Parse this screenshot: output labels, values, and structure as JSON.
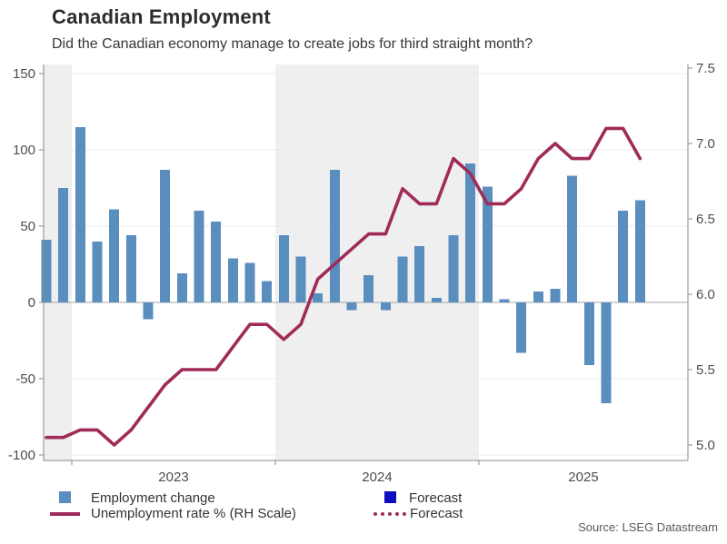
{
  "header": {
    "title": "Canadian Employment",
    "subtitle": "Did the Canadian economy manage to create jobs for third straight month?"
  },
  "source": "Source: LSEG Datastream",
  "colors": {
    "bar": "#5a8ebf",
    "line": "#a02b59",
    "forecast_bar": "#0d0dc4",
    "band": "#efefef",
    "grid": "#ebebeb",
    "zero_line": "#a6a6a6",
    "axis": "#8a8a8a",
    "tick_text": "#4d4d4d"
  },
  "legend": {
    "items": [
      {
        "swatch": "square",
        "color_key": "bar",
        "label": "Employment change"
      },
      {
        "swatch": "square",
        "color_key": "forecast_bar",
        "label": "Forecast"
      },
      {
        "swatch": "line",
        "color_key": "line",
        "label": "Unemployment rate % (RH Scale)"
      },
      {
        "swatch": "dotted-line",
        "color_key": "line",
        "label": "Forecast"
      }
    ]
  },
  "chart_data": {
    "type": "combo",
    "title": "Canadian Employment",
    "months": [
      "Nov 2022",
      "Dec 2022",
      "Jan 2023",
      "Feb 2023",
      "Mar 2023",
      "Apr 2023",
      "May 2023",
      "Jun 2023",
      "Jul 2023",
      "Aug 2023",
      "Sep 2023",
      "Oct 2023",
      "Nov 2023",
      "Dec 2023",
      "Jan 2024",
      "Feb 2024",
      "Mar 2024",
      "Apr 2024",
      "May 2024",
      "Jun 2024",
      "Jul 2024",
      "Aug 2024",
      "Sep 2024",
      "Oct 2024",
      "Nov 2024",
      "Dec 2024",
      "Jan 2025",
      "Feb 2025",
      "Mar 2025",
      "Apr 2025",
      "May 2025",
      "Jun 2025",
      "Jul 2025",
      "Aug 2025",
      "Sep 2025",
      "Oct 2025"
    ],
    "series": [
      {
        "name": "Employment change",
        "type": "bar",
        "axis": "left",
        "values": [
          41,
          75,
          115,
          40,
          61,
          44,
          -11,
          87,
          19,
          60,
          53,
          29,
          26,
          14,
          44,
          30,
          6,
          87,
          -5,
          18,
          -5,
          30,
          37,
          3,
          44,
          91,
          76,
          2,
          -33,
          7,
          9,
          83,
          -41,
          -66,
          60,
          67
        ]
      },
      {
        "name": "Unemployment rate % (RH Scale)",
        "type": "line",
        "axis": "right",
        "values": [
          5.05,
          5.05,
          5.1,
          5.1,
          5.0,
          5.1,
          5.25,
          5.4,
          5.5,
          5.5,
          5.5,
          5.65,
          5.8,
          5.8,
          5.7,
          5.8,
          6.1,
          6.2,
          6.3,
          6.4,
          6.4,
          6.7,
          6.6,
          6.6,
          6.9,
          6.8,
          6.6,
          6.6,
          6.7,
          6.9,
          7.0,
          6.9,
          6.9,
          7.1,
          7.1,
          6.9
        ]
      }
    ],
    "left_axis": {
      "ticks": [
        "150",
        "100",
        "50",
        "0",
        "-50",
        "-100"
      ],
      "range": [
        -100,
        150
      ]
    },
    "right_axis": {
      "ticks": [
        "7.5",
        "7.0",
        "6.5",
        "6.0",
        "5.5",
        "5.0"
      ],
      "range": [
        5.0,
        7.5
      ]
    },
    "x_axis": {
      "year_labels": [
        "2023",
        "2024",
        "2025"
      ],
      "shaded_years": [
        "2022",
        "2024"
      ],
      "grid": "horizontal-only"
    },
    "legend_position": "bottom"
  }
}
